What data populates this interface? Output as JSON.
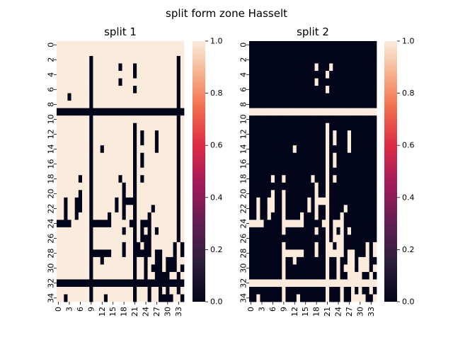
{
  "figure": {
    "suptitle": "split form zone Hasselt"
  },
  "chart_data": [
    {
      "type": "heatmap",
      "title": "split 1",
      "n_rows": 35,
      "n_cols": 35,
      "ytick_labels": [
        "0",
        "2",
        "4",
        "6",
        "8",
        "10",
        "12",
        "14",
        "16",
        "18",
        "20",
        "22",
        "24",
        "26",
        "28",
        "30",
        "32",
        "34"
      ],
      "xtick_labels": [
        "0",
        "3",
        "6",
        "9",
        "12",
        "15",
        "18",
        "21",
        "24",
        "27",
        "30",
        "33"
      ],
      "value_range": [
        0,
        1
      ],
      "colorbar_ticks": [
        "0.0",
        "0.2",
        "0.4",
        "0.6",
        "0.8",
        "1.0"
      ],
      "colormap": "rocket",
      "full_rows": [
        9,
        32
      ],
      "full_cols": [
        9,
        20
      ],
      "matrix": [
        "11111111111111111111111111111111111",
        "11111111111111111111111111111111111",
        "11111111101111111111111111111111101",
        "11111111101111111011101111111111101",
        "11111111101111111111101111111111101",
        "11111111101111111011111111111111101",
        "11111111101111111111101111111111101",
        "11101111101111111111111111111111101",
        "11111111101111111111111111111111101",
        "00000000000000000000000000000000000",
        "11111111101111111111111111111111101",
        "11111111101111111111101111111111101",
        "11111111101111111111101011101111101",
        "11111111101111111111101011101111101",
        "11111111101101111111101111101111101",
        "11111111101111111111101011111111101",
        "11111111101111111111101011111111101",
        "11111111101111111111101111111111101",
        "11111101101111111011101011111111101",
        "11111111101111111101101111111111101",
        "11111101101111111101101111111111101",
        "11011001101111110100001111111111101",
        "11011001101111110101101111011111101",
        "11011011101111011101101110111111101",
        "00001111100000011111001000111111101",
        "11111111101111111101101010101111101",
        "11111111101111111111101000111111101",
        "11111111101111111101100100111111010",
        "11111111100000011101100000100111010",
        "11111111101101111111101101100100011",
        "11111111101111111111101101000100010",
        "11111111101111111111101101100001101",
        "00000000000000000000000000000000000",
        "11111111101111111111101110110101101",
        "11011111101110111111101110110000110"
      ]
    },
    {
      "type": "heatmap",
      "title": "split 2",
      "n_rows": 35,
      "n_cols": 35,
      "ytick_labels": [
        "0",
        "2",
        "4",
        "6",
        "8",
        "10",
        "12",
        "14",
        "16",
        "18",
        "20",
        "22",
        "24",
        "26",
        "28",
        "30",
        "32",
        "34"
      ],
      "xtick_labels": [
        "0",
        "3",
        "6",
        "9",
        "12",
        "15",
        "18",
        "21",
        "24",
        "27",
        "30",
        "33"
      ],
      "value_range": [
        0,
        1
      ],
      "colorbar_ticks": [
        "0.0",
        "0.2",
        "0.4",
        "0.6",
        "0.8",
        "1.0"
      ],
      "colormap": "rocket",
      "full_rows": [
        9,
        32
      ],
      "full_cols": [
        9,
        20
      ],
      "matrix": [
        "00000000000000000000000000000000000",
        "00000000000000000000000000000000000",
        "00000000000000000000000000000000000",
        "00000000000000000010001000000000000",
        "00000000000000000000010000000000000",
        "00000000000000000010000000000000000",
        "00000000000000000000010000000000000",
        "00000000000000000000000000000000000",
        "00000000000000000000000000000000000",
        "11111111111111111111111111111111111",
        "00000000000000000000000000000000000",
        "00000000000000000000010000000000000",
        "00000000000000000000010100010000000",
        "00000000000000000000010100010000000",
        "00000000000010000000010000010000000",
        "00000000000000000000010100000000000",
        "00000000000000000000010100000000000",
        "00000000000000000000010000000000000",
        "00000010010000000100010100000000000",
        "00000000000000000010010000000000000",
        "00000010010000000010010000000000000",
        "00100110010000001011110000000000000",
        "00100110010000001010010000100000000",
        "00100100010000100010010001000000000",
        "11110000011111100000110111000000000",
        "00000000010000000010010101010000000",
        "00000000000000000000010111000000000",
        "00000000010000000010011011000000101",
        "00000000011111100010011111011000101",
        "00000000010010000000010010011011100",
        "00000000010000000000010010111011101",
        "00000000010000000000010010011110010",
        "11111111111111111111111111111111111",
        "00000000010000000000010001001010010",
        "00100000010001000000010001001111001"
      ]
    }
  ]
}
